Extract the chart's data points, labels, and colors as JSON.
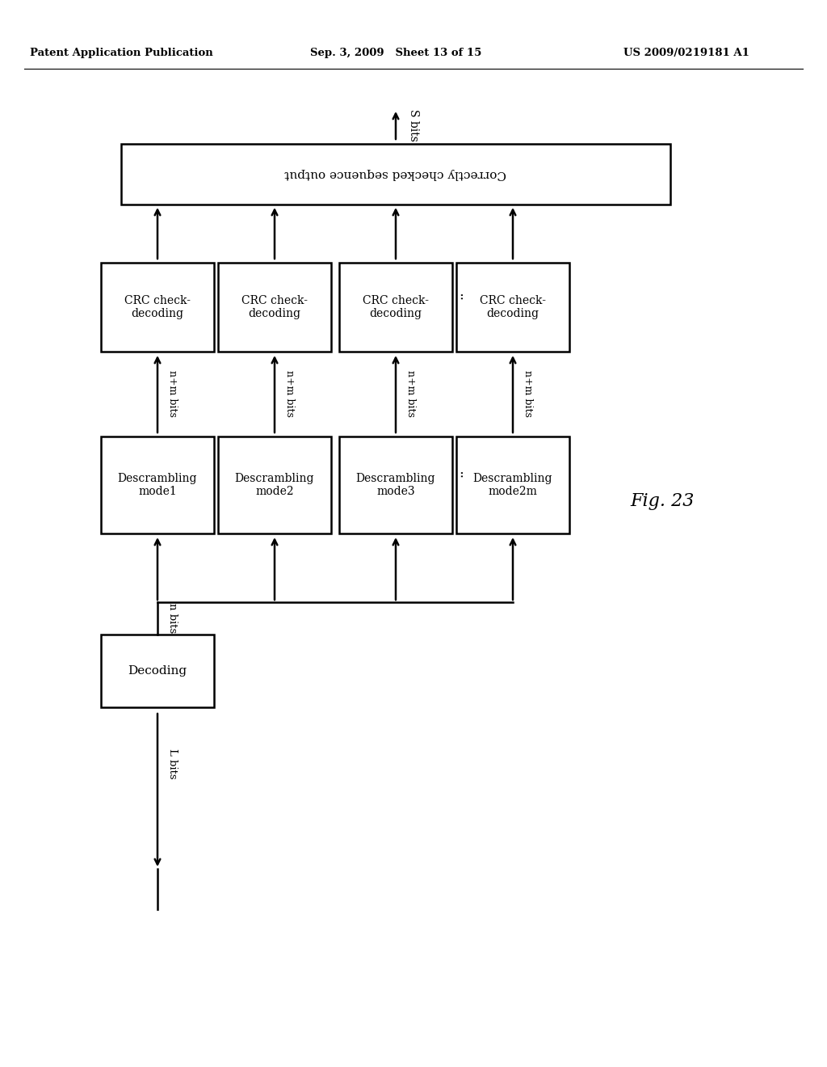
{
  "header_left": "Patent Application Publication",
  "header_mid": "Sep. 3, 2009   Sheet 13 of 15",
  "header_right": "US 2009/0219181 A1",
  "fig_label": "Fig. 23",
  "top_box_text": "Correctly checked sequence output",
  "top_label": "S bits",
  "n_bits_label": "n bits",
  "descrambling_boxes": [
    "Descrambling\nmode1",
    "Descrambling\nmode2",
    "Descrambling\nmode3",
    "Descrambling\nmode2m"
  ],
  "nm_bits_labels": [
    "n+m bits",
    "n+m bits",
    "n+m bits",
    "n+m bits"
  ],
  "crc_boxes": [
    "CRC check-\ndecoding",
    "CRC check-\ndecoding",
    "CRC check-\ndecoding",
    "CRC check-\ndecoding"
  ],
  "decoding_box_text": "Decoding",
  "bottom_label": "L bits",
  "bg_color": "#ffffff",
  "box_edge_color": "#000000",
  "text_color": "#000000",
  "arrow_color": "#000000",
  "linewidth": 1.8
}
